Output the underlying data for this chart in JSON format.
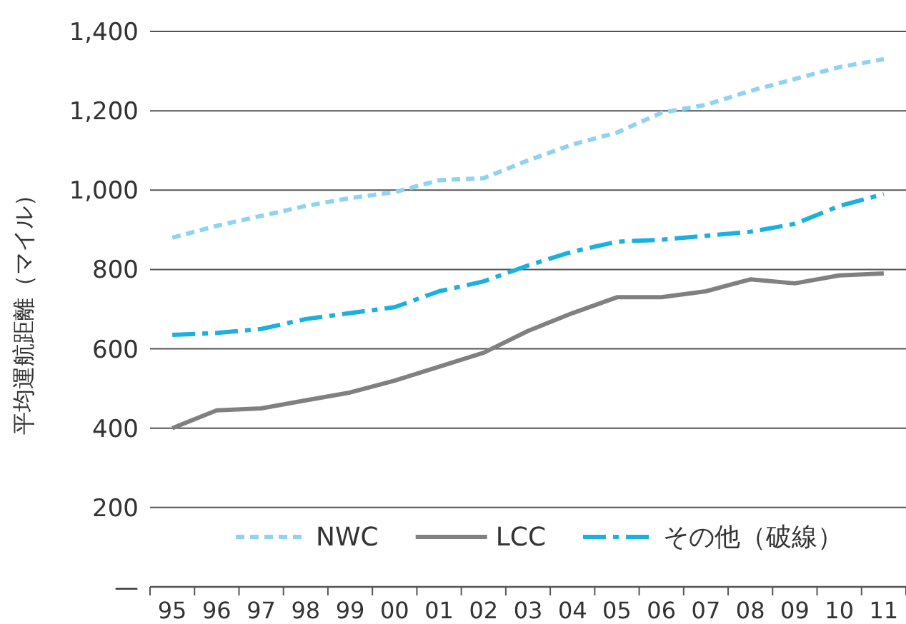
{
  "chart_data": {
    "type": "line",
    "ylabel": "平均運航距離（マイル）",
    "categories": [
      "95",
      "96",
      "97",
      "98",
      "99",
      "00",
      "01",
      "02",
      "03",
      "04",
      "05",
      "06",
      "07",
      "08",
      "09",
      "10",
      "11"
    ],
    "ylim": [
      0,
      1400
    ],
    "yticks": [
      {
        "value": 0,
        "label": "—"
      },
      {
        "value": 200,
        "label": "200"
      },
      {
        "value": 400,
        "label": "400"
      },
      {
        "value": 600,
        "label": "600"
      },
      {
        "value": 800,
        "label": "800"
      },
      {
        "value": 1000,
        "label": "1,000"
      },
      {
        "value": 1200,
        "label": "1,200"
      },
      {
        "value": 1400,
        "label": "1,400"
      }
    ],
    "grid": "y",
    "legend": "bottom",
    "series": [
      {
        "name": "NWC",
        "color": "#8fd3f0",
        "line_style": "dashed",
        "values": [
          880,
          910,
          935,
          960,
          980,
          995,
          1025,
          1030,
          1075,
          1115,
          1145,
          1195,
          1215,
          1250,
          1280,
          1310,
          1330
        ]
      },
      {
        "name": "LCC",
        "color": "#808080",
        "line_style": "solid",
        "values": [
          400,
          445,
          450,
          470,
          490,
          520,
          555,
          590,
          645,
          690,
          730,
          730,
          745,
          775,
          765,
          785,
          790
        ]
      },
      {
        "name": "その他（破線）",
        "color": "#1ab0e0",
        "line_style": "longdash",
        "values": [
          635,
          640,
          650,
          675,
          690,
          705,
          745,
          770,
          810,
          845,
          870,
          875,
          885,
          895,
          915,
          960,
          990
        ]
      }
    ]
  }
}
